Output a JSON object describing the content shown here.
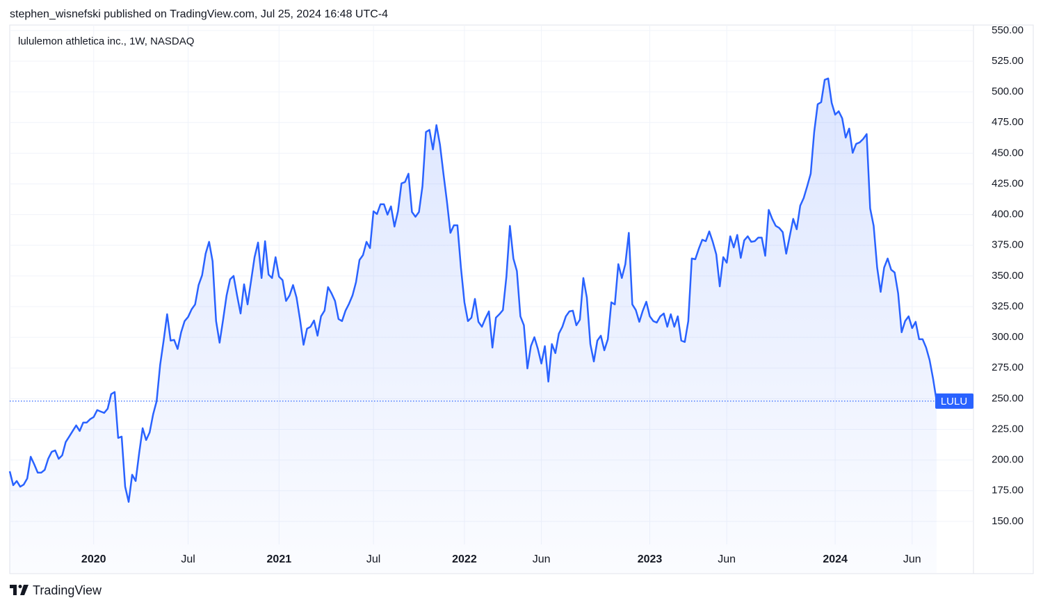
{
  "header": "stephen_wisnefski published on TradingView.com, Jul 25, 2024 16:48 UTC-4",
  "footer": {
    "brand": "TradingView"
  },
  "chart_data": {
    "type": "line",
    "title": "lululemon athletica inc., 1W, NASDAQ",
    "categories": [
      null,
      null,
      null,
      null,
      null,
      null,
      null,
      null,
      null,
      null,
      null,
      null,
      null,
      null,
      null,
      null,
      null,
      null,
      null,
      null,
      null,
      null,
      null,
      null,
      "2020",
      null,
      null,
      null,
      null,
      null,
      null,
      null,
      null,
      null,
      null,
      null,
      null,
      null,
      null,
      null,
      null,
      null,
      null,
      null,
      null,
      null,
      null,
      null,
      null,
      null,
      null,
      "Jul",
      null,
      null,
      null,
      null,
      null,
      null,
      null,
      null,
      null,
      null,
      null,
      null,
      null,
      null,
      null,
      null,
      null,
      null,
      null,
      null,
      null,
      null,
      null,
      null,
      null,
      "2021",
      null,
      null,
      null,
      null,
      null,
      null,
      null,
      null,
      null,
      null,
      null,
      null,
      null,
      null,
      null,
      null,
      null,
      null,
      null,
      null,
      null,
      null,
      null,
      null,
      null,
      null,
      "Jul",
      null,
      null,
      null,
      null,
      null,
      null,
      null,
      null,
      null,
      null,
      null,
      null,
      null,
      null,
      null,
      null,
      null,
      null,
      null,
      null,
      null,
      null,
      null,
      null,
      null,
      "2022",
      null,
      null,
      null,
      null,
      null,
      null,
      null,
      null,
      null,
      null,
      null,
      null,
      null,
      null,
      null,
      null,
      null,
      null,
      null,
      null,
      null,
      "Jun",
      null,
      null,
      null,
      null,
      null,
      null,
      null,
      null,
      null,
      null,
      null,
      null,
      null,
      null,
      null,
      null,
      null,
      null,
      null,
      null,
      null,
      null,
      null,
      null,
      null,
      null,
      null,
      null,
      null,
      null,
      "2023",
      null,
      null,
      null,
      null,
      null,
      null,
      null,
      null,
      null,
      null,
      null,
      null,
      null,
      null,
      null,
      null,
      null,
      null,
      null,
      null,
      null,
      "Jun",
      null,
      null,
      null,
      null,
      null,
      null,
      null,
      null,
      null,
      null,
      null,
      null,
      null,
      null,
      null,
      null,
      null,
      null,
      null,
      null,
      null,
      null,
      null,
      null,
      null,
      null,
      null,
      null,
      null,
      null,
      "2024",
      null,
      null,
      null,
      null,
      null,
      null,
      null,
      null,
      null,
      null,
      null,
      null,
      null,
      null,
      null,
      null,
      null,
      null,
      null,
      null,
      null,
      "Jun",
      null,
      null,
      null,
      null,
      null,
      null,
      null
    ],
    "series": [
      {
        "name": "LULU",
        "color": "#2962ff",
        "values": [
          190.8,
          179.5,
          182.9,
          178.3,
          180,
          185,
          202.7,
          196.5,
          189.7,
          189.7,
          192,
          201,
          206.7,
          207.8,
          201,
          203.8,
          214.6,
          219.1,
          223.7,
          228.2,
          223.7,
          230.5,
          230.5,
          233.3,
          235,
          240.7,
          239.5,
          238.4,
          241.8,
          253.7,
          255.4,
          218,
          219.1,
          178.3,
          165.9,
          188,
          182.9,
          205.5,
          225.9,
          216.3,
          222.5,
          237.3,
          248,
          277.5,
          297.3,
          318.8,
          297.3,
          297.9,
          290.5,
          304.1,
          313.2,
          316.6,
          322.8,
          326.8,
          342.6,
          350.6,
          368.1,
          377.8,
          361.9,
          313.2,
          295.6,
          314.3,
          334.1,
          347.2,
          350,
          334.1,
          319.4,
          343.2,
          326.8,
          346,
          365.3,
          377.2,
          348.3,
          378.3,
          351.1,
          348.3,
          365.3,
          349.4,
          346.6,
          329.6,
          334.1,
          342.6,
          332.4,
          314.3,
          293.9,
          307,
          308.6,
          313.7,
          301.3,
          317.1,
          321.7,
          340.9,
          335.8,
          329.6,
          314.9,
          313.2,
          321.7,
          327.3,
          334.1,
          344.9,
          363,
          367,
          377.8,
          372.7,
          402.7,
          400.4,
          408.4,
          408.4,
          399.9,
          406.7,
          390.2,
          402.7,
          425.4,
          426.5,
          433.3,
          402.1,
          398.2,
          402.1,
          423.1,
          467.3,
          469,
          453.1,
          472.9,
          457.1,
          433.3,
          410.6,
          385.1,
          391.3,
          391.3,
          356.8,
          328.5,
          313.2,
          316,
          331.3,
          312.6,
          308.6,
          315.4,
          321.1,
          291.6,
          316,
          318.8,
          322.2,
          349.4,
          390.8,
          364.2,
          354,
          317.1,
          309.8,
          274.6,
          292.8,
          300.1,
          290.5,
          278.6,
          292.8,
          263.9,
          294.5,
          287.1,
          303,
          308.6,
          317.1,
          321.1,
          321.7,
          309.8,
          314.3,
          348.3,
          332.4,
          294.5,
          280.3,
          297.3,
          301.3,
          289.4,
          298.4,
          328.5,
          326.8,
          359.6,
          348.3,
          359.6,
          385.1,
          326.8,
          322.2,
          312.6,
          321.7,
          329,
          317.1,
          313.2,
          312,
          317.1,
          319.4,
          308.6,
          318.8,
          308.6,
          317.1,
          297.3,
          296.2,
          313.2,
          364.2,
          363.6,
          372.1,
          379.5,
          378.3,
          386.3,
          377.8,
          367.6,
          341.5,
          365.3,
          360.8,
          382.3,
          373.2,
          383.4,
          364.7,
          379,
          382.3,
          377.8,
          378.3,
          381.2,
          381.2,
          366.4,
          403.8,
          396.5,
          390.8,
          389.1,
          385.7,
          368.1,
          382.3,
          396.5,
          388,
          407.2,
          413.5,
          423.1,
          433.3,
          467.3,
          489.9,
          491.6,
          509.8,
          510.9,
          491,
          481.4,
          484.2,
          478.5,
          462.7,
          470.1,
          450.3,
          457.6,
          458.8,
          461.6,
          465.6,
          405,
          390.8,
          356.8,
          337,
          356.8,
          364.2,
          355.1,
          352.8,
          335.8,
          304.1,
          313.2,
          317.1,
          307.5,
          312.6,
          298.4,
          298.4,
          291.6,
          281.4,
          266.1,
          248
        ]
      }
    ],
    "ylim": [
      108,
      555
    ],
    "yticks": [
      {
        "value": 150,
        "label": "150.00"
      },
      {
        "value": 175,
        "label": "175.00"
      },
      {
        "value": 200,
        "label": "200.00"
      },
      {
        "value": 225,
        "label": "225.00"
      },
      {
        "value": 250,
        "label": "250.00"
      },
      {
        "value": 275,
        "label": "275.00"
      },
      {
        "value": 300,
        "label": "300.00"
      },
      {
        "value": 325,
        "label": "325.00"
      },
      {
        "value": 350,
        "label": "350.00"
      },
      {
        "value": 375,
        "label": "375.00"
      },
      {
        "value": 400,
        "label": "400.00"
      },
      {
        "value": 425,
        "label": "425.00"
      },
      {
        "value": 450,
        "label": "450.00"
      },
      {
        "value": 475,
        "label": "475.00"
      },
      {
        "value": 500,
        "label": "500.00"
      },
      {
        "value": 525,
        "label": "525.00"
      },
      {
        "value": 550,
        "label": "550.00"
      }
    ],
    "grid": true
  }
}
